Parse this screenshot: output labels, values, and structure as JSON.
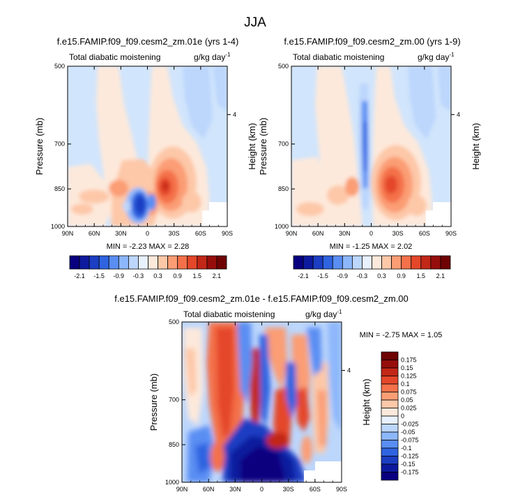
{
  "page_title": "JJA",
  "colors": {
    "scale": [
      "#08007f",
      "#0d1a9e",
      "#1c3ec2",
      "#2f63e0",
      "#5a8ef3",
      "#8db7fb",
      "#bcd6fc",
      "#e8f1fe",
      "#fde9db",
      "#fdc8a8",
      "#fb9d74",
      "#f4714a",
      "#e4472a",
      "#c22718",
      "#960e0c",
      "#6e0403"
    ],
    "light_blue": "#d1e5fc",
    "light_peach": "#fde9db"
  },
  "chart_data": [
    {
      "type": "heatmap",
      "title": "f.e15.FAMIP.f09_f09.cesm2_zm.01e (yrs 1-4)",
      "left_string": "Total diabatic moistening",
      "right_string": "g/kg day",
      "right_string_sup": "-1",
      "ylabel": "Pressure (mb)",
      "ylabel_right": "Height (km)",
      "x_ticks": [
        "90N",
        "60N",
        "30N",
        "0",
        "30S",
        "60S",
        "90S"
      ],
      "y_ticks": [
        "500",
        "700",
        "850",
        "1000"
      ],
      "y_right_ticks": [
        "4"
      ],
      "stats": {
        "min_label": "MIN =",
        "min": "-2.23",
        "max_label": "MAX =",
        "max": "2.28"
      },
      "colorbar_labels": [
        "-2.1",
        "-1.5",
        "-0.9",
        "-0.3",
        "0.3",
        "0.9",
        "1.5",
        "2.1"
      ]
    },
    {
      "type": "heatmap",
      "title": "f.e15.FAMIP.f09_f09.cesm2_zm.00 (yrs 1-9)",
      "left_string": "Total diabatic moistening",
      "right_string": "g/kg day",
      "right_string_sup": "-1",
      "ylabel": "Pressure (mb)",
      "ylabel_right": "Height (km)",
      "x_ticks": [
        "90N",
        "60N",
        "30N",
        "0",
        "30S",
        "60S",
        "90S"
      ],
      "y_ticks": [
        "500",
        "700",
        "850",
        "1000"
      ],
      "y_right_ticks": [
        "4"
      ],
      "stats": {
        "min_label": "MIN =",
        "min": "-1.25",
        "max_label": "MAX =",
        "max": "2.02"
      },
      "colorbar_labels": [
        "-2.1",
        "-1.5",
        "-0.9",
        "-0.3",
        "0.3",
        "0.9",
        "1.5",
        "2.1"
      ]
    },
    {
      "type": "heatmap",
      "title": "f.e15.FAMIP.f09_f09.cesm2_zm.01e - f.e15.FAMIP.f09_f09.cesm2_zm.00",
      "left_string": "Total diabatic moistening",
      "right_string": "g/kg day",
      "right_string_sup": "-1",
      "ylabel": "Pressure (mb)",
      "ylabel_right": "Height (km)",
      "x_ticks": [
        "90N",
        "60N",
        "30N",
        "0",
        "30S",
        "60S",
        "90S"
      ],
      "y_ticks": [
        "500",
        "700",
        "850",
        "1000"
      ],
      "y_right_ticks": [
        "4"
      ],
      "stats": {
        "min_label": "MIN =",
        "min": "-2.75",
        "max_label": "MAX =",
        "max": "1.05"
      },
      "colorbar_labels": [
        "0.175",
        "0.15",
        "0.125",
        "0.1",
        "0.075",
        "0.05",
        "0.025",
        "0",
        "-0.025",
        "-0.05",
        "-0.075",
        "-0.1",
        "-0.125",
        "-0.15",
        "-0.175"
      ]
    }
  ]
}
